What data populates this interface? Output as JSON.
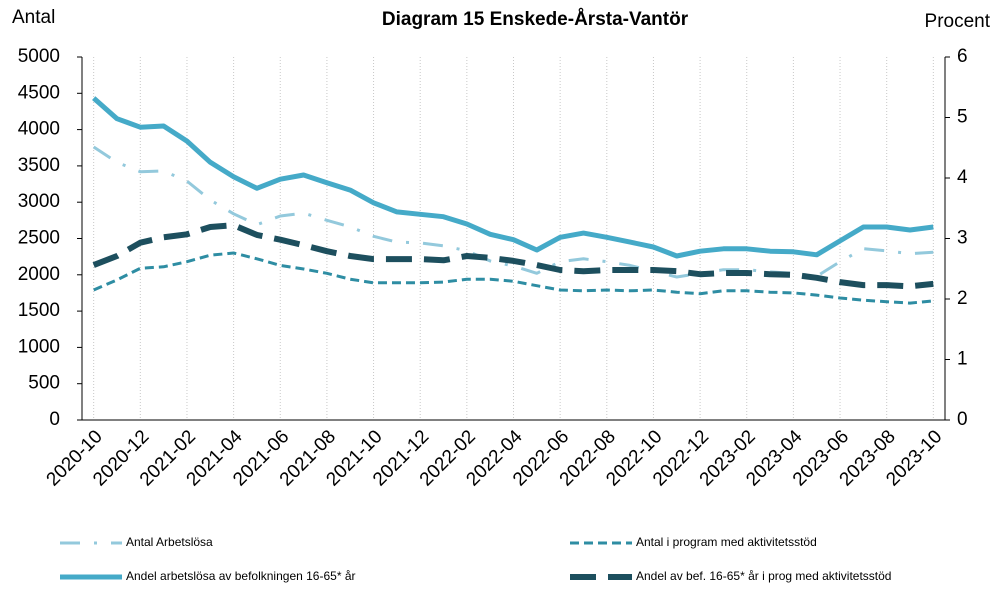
{
  "chart_data": {
    "type": "line",
    "title": "Diagram 15 Enskede-Årsta-Vantör",
    "y_label": "Antal",
    "y2_label": "Procent",
    "categories": [
      "2020-10",
      null,
      "2020-12",
      null,
      "2021-02",
      null,
      "2021-04",
      null,
      "2021-06",
      null,
      "2021-08",
      null,
      "2021-10",
      null,
      "2021-12",
      null,
      "2022-02",
      null,
      "2022-04",
      null,
      "2022-06",
      null,
      "2022-08",
      null,
      "2022-10",
      null,
      "2022-12",
      null,
      "2023-02",
      null,
      "2023-04",
      null,
      "2023-06",
      null,
      "2023-08",
      null,
      "2023-10"
    ],
    "ylim": [
      0,
      5000
    ],
    "yticks": [
      0,
      500,
      1000,
      1500,
      2000,
      2500,
      3000,
      3500,
      4000,
      4500,
      5000
    ],
    "y2lim": [
      0,
      6
    ],
    "y2ticks": [
      0,
      1,
      2,
      3,
      4,
      5,
      6
    ],
    "grid": true,
    "legend": "bottom",
    "series": [
      {
        "name": "Antal Arbetslösa",
        "color": "#93c9dc",
        "dash": "dashdot",
        "width": 3,
        "axis": "y",
        "values": [
          3760,
          3550,
          3420,
          3430,
          3290,
          3030,
          2840,
          2690,
          2810,
          2850,
          2750,
          2660,
          2530,
          2450,
          2440,
          2400,
          2330,
          2190,
          2120,
          2020,
          2180,
          2220,
          2180,
          2130,
          2050,
          1970,
          2020,
          2070,
          2070,
          2040,
          2020,
          1980,
          2180,
          2360,
          2330,
          2290,
          2310
        ]
      },
      {
        "name": "Antal i program med aktivitetsstöd",
        "color": "#2e8da3",
        "dash": "dash",
        "width": 3,
        "axis": "y",
        "values": [
          1790,
          1930,
          2090,
          2110,
          2180,
          2270,
          2300,
          2220,
          2130,
          2080,
          2020,
          1940,
          1890,
          1890,
          1890,
          1900,
          1940,
          1940,
          1910,
          1850,
          1790,
          1780,
          1790,
          1780,
          1790,
          1760,
          1740,
          1780,
          1780,
          1760,
          1750,
          1720,
          1680,
          1650,
          1630,
          1610,
          1640
        ]
      },
      {
        "name": "Andel arbetslösa av befolkningen 16-65* år",
        "color": "#45aac8",
        "dash": "solid",
        "width": 5,
        "axis": "y2",
        "values": [
          5.32,
          4.98,
          4.84,
          4.86,
          4.61,
          4.26,
          4.02,
          3.83,
          3.98,
          4.05,
          3.92,
          3.8,
          3.59,
          3.44,
          3.4,
          3.36,
          3.24,
          3.07,
          2.98,
          2.81,
          3.02,
          3.09,
          3.02,
          2.94,
          2.86,
          2.71,
          2.79,
          2.83,
          2.83,
          2.79,
          2.78,
          2.73,
          2.96,
          3.19,
          3.19,
          3.14,
          3.19
        ]
      },
      {
        "name": "Andel av bef. 16-65* år i prog med aktivitetsstöd",
        "color": "#1d4f5e",
        "dash": "longdash",
        "width": 6,
        "axis": "y2",
        "values": [
          2.56,
          2.71,
          2.93,
          3.02,
          3.07,
          3.19,
          3.22,
          3.06,
          2.98,
          2.89,
          2.79,
          2.71,
          2.66,
          2.66,
          2.66,
          2.64,
          2.71,
          2.68,
          2.63,
          2.56,
          2.48,
          2.46,
          2.48,
          2.48,
          2.48,
          2.46,
          2.41,
          2.43,
          2.43,
          2.41,
          2.4,
          2.35,
          2.28,
          2.23,
          2.23,
          2.21,
          2.25
        ]
      }
    ]
  }
}
